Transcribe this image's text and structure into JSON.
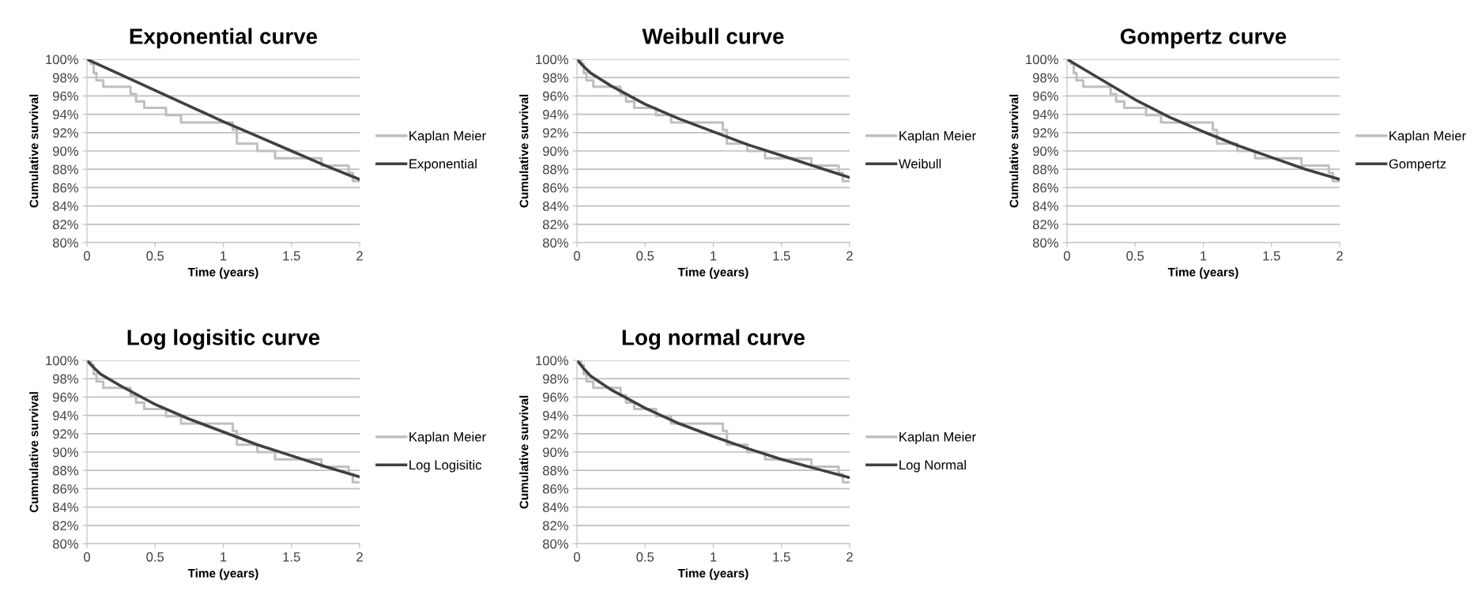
{
  "chart_data": [
    {
      "type": "line",
      "title": "Exponential curve",
      "xlabel": "Time (years)",
      "ylabel": "Cumulative survival",
      "xlim": [
        0,
        2
      ],
      "xticks": [
        0,
        0.5,
        1,
        1.5,
        2
      ],
      "ylim": [
        80,
        100
      ],
      "yticks": [
        {
          "value": 80,
          "label": "80%"
        },
        {
          "value": 82,
          "label": "82%"
        },
        {
          "value": 84,
          "label": "84%"
        },
        {
          "value": 86,
          "label": "86%"
        },
        {
          "value": 88,
          "label": "88%"
        },
        {
          "value": 90,
          "label": "90%"
        },
        {
          "value": 92,
          "label": "92%"
        },
        {
          "value": 94,
          "label": "94%"
        },
        {
          "value": 96,
          "label": "96%"
        },
        {
          "value": 98,
          "label": "98%"
        },
        {
          "value": 100,
          "label": "100%"
        }
      ],
      "grid": "y",
      "legend": "right",
      "marker": "none",
      "series": [
        {
          "name": "Kaplan Meier",
          "type": "step",
          "color": "#bfbfbf",
          "x": [
            0,
            0.03,
            0.05,
            0.07,
            0.12,
            0.32,
            0.36,
            0.42,
            0.58,
            0.69,
            1.07,
            1.1,
            1.25,
            1.38,
            1.72,
            1.92,
            1.95,
            2
          ],
          "values": [
            100,
            99.5,
            98.5,
            97.7,
            97.0,
            96.2,
            95.4,
            94.7,
            93.9,
            93.1,
            92.3,
            90.8,
            90.0,
            89.2,
            88.4,
            87.6,
            86.7,
            86.7
          ]
        },
        {
          "name": "Exponential",
          "color": "#404040",
          "x": [
            0,
            0.25,
            0.5,
            0.75,
            1,
            1.25,
            1.5,
            1.75,
            2
          ],
          "values": [
            100,
            98.3,
            96.6,
            94.9,
            93.2,
            91.6,
            90.0,
            88.4,
            86.9
          ]
        }
      ]
    },
    {
      "type": "line",
      "title": "Weibull curve",
      "xlabel": "Time (years)",
      "ylabel": "Cumulative survival",
      "xlim": [
        0,
        2
      ],
      "xticks": [
        0,
        0.5,
        1,
        1.5,
        2
      ],
      "ylim": [
        80,
        100
      ],
      "yticks": [
        {
          "value": 80,
          "label": "80%"
        },
        {
          "value": 82,
          "label": "82%"
        },
        {
          "value": 84,
          "label": "84%"
        },
        {
          "value": 86,
          "label": "86%"
        },
        {
          "value": 88,
          "label": "88%"
        },
        {
          "value": 90,
          "label": "90%"
        },
        {
          "value": 92,
          "label": "92%"
        },
        {
          "value": 94,
          "label": "94%"
        },
        {
          "value": 96,
          "label": "96%"
        },
        {
          "value": 98,
          "label": "98%"
        },
        {
          "value": 100,
          "label": "100%"
        }
      ],
      "grid": "y",
      "legend": "right",
      "marker": "none",
      "series": [
        {
          "name": "Kaplan Meier",
          "type": "step",
          "color": "#bfbfbf",
          "x": [
            0,
            0.03,
            0.05,
            0.07,
            0.12,
            0.32,
            0.36,
            0.42,
            0.58,
            0.69,
            1.07,
            1.1,
            1.25,
            1.38,
            1.72,
            1.92,
            1.95,
            2
          ],
          "values": [
            100,
            99.5,
            98.5,
            97.7,
            97.0,
            96.2,
            95.4,
            94.7,
            93.9,
            93.1,
            92.3,
            90.8,
            90.0,
            89.2,
            88.4,
            87.6,
            86.7,
            86.7
          ]
        },
        {
          "name": "Weibull",
          "color": "#404040",
          "x": [
            0,
            0.05,
            0.1,
            0.25,
            0.5,
            0.75,
            1,
            1.25,
            1.5,
            1.75,
            2
          ],
          "values": [
            100,
            99.2,
            98.5,
            97.1,
            95.1,
            93.5,
            92.1,
            90.7,
            89.5,
            88.3,
            87.1
          ]
        }
      ]
    },
    {
      "type": "line",
      "title": "Gompertz curve",
      "xlabel": "Time (years)",
      "ylabel": "Cumulative survival",
      "xlim": [
        0,
        2
      ],
      "xticks": [
        0,
        0.5,
        1,
        1.5,
        2
      ],
      "ylim": [
        80,
        100
      ],
      "yticks": [
        {
          "value": 80,
          "label": "80%"
        },
        {
          "value": 82,
          "label": "82%"
        },
        {
          "value": 84,
          "label": "84%"
        },
        {
          "value": 86,
          "label": "86%"
        },
        {
          "value": 88,
          "label": "88%"
        },
        {
          "value": 90,
          "label": "90%"
        },
        {
          "value": 92,
          "label": "92%"
        },
        {
          "value": 94,
          "label": "94%"
        },
        {
          "value": 96,
          "label": "96%"
        },
        {
          "value": 98,
          "label": "98%"
        },
        {
          "value": 100,
          "label": "100%"
        }
      ],
      "grid": "y",
      "legend": "right",
      "marker": "none",
      "series": [
        {
          "name": "Kaplan Meier",
          "type": "step",
          "color": "#bfbfbf",
          "x": [
            0,
            0.03,
            0.05,
            0.07,
            0.12,
            0.32,
            0.36,
            0.42,
            0.58,
            0.69,
            1.07,
            1.1,
            1.25,
            1.38,
            1.72,
            1.92,
            1.95,
            2
          ],
          "values": [
            100,
            99.5,
            98.5,
            97.7,
            97.0,
            96.2,
            95.4,
            94.7,
            93.9,
            93.1,
            92.3,
            90.8,
            90.0,
            89.2,
            88.4,
            87.6,
            86.7,
            86.7
          ]
        },
        {
          "name": "Gompertz",
          "color": "#404040",
          "x": [
            0,
            0.25,
            0.5,
            0.75,
            1,
            1.25,
            1.5,
            1.75,
            2
          ],
          "values": [
            100,
            97.8,
            95.6,
            93.7,
            92.1,
            90.6,
            89.3,
            88.0,
            86.9
          ]
        }
      ]
    },
    {
      "type": "line",
      "title": "Log logisitic curve",
      "xlabel": "Time (years)",
      "ylabel": "Cumnulative survival",
      "xlim": [
        0,
        2
      ],
      "xticks": [
        0,
        0.5,
        1,
        1.5,
        2
      ],
      "ylim": [
        80,
        100
      ],
      "yticks": [
        {
          "value": 80,
          "label": "80%"
        },
        {
          "value": 82,
          "label": "82%"
        },
        {
          "value": 84,
          "label": "84%"
        },
        {
          "value": 86,
          "label": "86%"
        },
        {
          "value": 88,
          "label": "88%"
        },
        {
          "value": 90,
          "label": "90%"
        },
        {
          "value": 92,
          "label": "92%"
        },
        {
          "value": 94,
          "label": "94%"
        },
        {
          "value": 96,
          "label": "96%"
        },
        {
          "value": 98,
          "label": "98%"
        },
        {
          "value": 100,
          "label": "100%"
        }
      ],
      "grid": "y",
      "legend": "right",
      "marker": "none",
      "series": [
        {
          "name": "Kaplan Meier",
          "type": "step",
          "color": "#bfbfbf",
          "x": [
            0,
            0.03,
            0.05,
            0.07,
            0.12,
            0.32,
            0.36,
            0.42,
            0.58,
            0.69,
            1.07,
            1.1,
            1.25,
            1.38,
            1.72,
            1.92,
            1.95,
            2
          ],
          "values": [
            100,
            99.5,
            98.5,
            97.7,
            97.0,
            96.2,
            95.4,
            94.7,
            93.9,
            93.1,
            92.3,
            90.8,
            90.0,
            89.2,
            88.4,
            87.6,
            86.7,
            86.7
          ]
        },
        {
          "name": "Log Logisitic",
          "color": "#404040",
          "x": [
            0,
            0.05,
            0.1,
            0.25,
            0.5,
            0.75,
            1,
            1.25,
            1.5,
            1.75,
            2
          ],
          "values": [
            100,
            99.2,
            98.5,
            97.2,
            95.2,
            93.6,
            92.2,
            90.8,
            89.6,
            88.4,
            87.3
          ]
        }
      ]
    },
    {
      "type": "line",
      "title": "Log normal curve",
      "xlabel": "Time (years)",
      "ylabel": "Cumulative survival",
      "xlim": [
        0,
        2
      ],
      "xticks": [
        0,
        0.5,
        1,
        1.5,
        2
      ],
      "ylim": [
        80,
        100
      ],
      "yticks": [
        {
          "value": 80,
          "label": "80%"
        },
        {
          "value": 82,
          "label": "82%"
        },
        {
          "value": 84,
          "label": "84%"
        },
        {
          "value": 86,
          "label": "86%"
        },
        {
          "value": 88,
          "label": "88%"
        },
        {
          "value": 90,
          "label": "90%"
        },
        {
          "value": 92,
          "label": "92%"
        },
        {
          "value": 94,
          "label": "94%"
        },
        {
          "value": 96,
          "label": "96%"
        },
        {
          "value": 98,
          "label": "98%"
        },
        {
          "value": 100,
          "label": "100%"
        }
      ],
      "grid": "y",
      "legend": "right",
      "marker": "none",
      "series": [
        {
          "name": "Kaplan Meier",
          "type": "step",
          "color": "#bfbfbf",
          "x": [
            0,
            0.03,
            0.05,
            0.07,
            0.12,
            0.32,
            0.36,
            0.42,
            0.58,
            0.69,
            1.07,
            1.1,
            1.25,
            1.38,
            1.72,
            1.92,
            1.95,
            2
          ],
          "values": [
            100,
            99.5,
            98.5,
            97.7,
            97.0,
            96.2,
            95.4,
            94.7,
            93.9,
            93.1,
            92.3,
            90.8,
            90.0,
            89.2,
            88.4,
            87.6,
            86.7,
            86.7
          ]
        },
        {
          "name": "Log Normal",
          "color": "#404040",
          "x": [
            0,
            0.05,
            0.1,
            0.25,
            0.5,
            0.75,
            1,
            1.25,
            1.5,
            1.75,
            2
          ],
          "values": [
            100,
            99.1,
            98.3,
            96.8,
            94.8,
            93.1,
            91.7,
            90.4,
            89.2,
            88.2,
            87.2
          ]
        }
      ]
    }
  ]
}
